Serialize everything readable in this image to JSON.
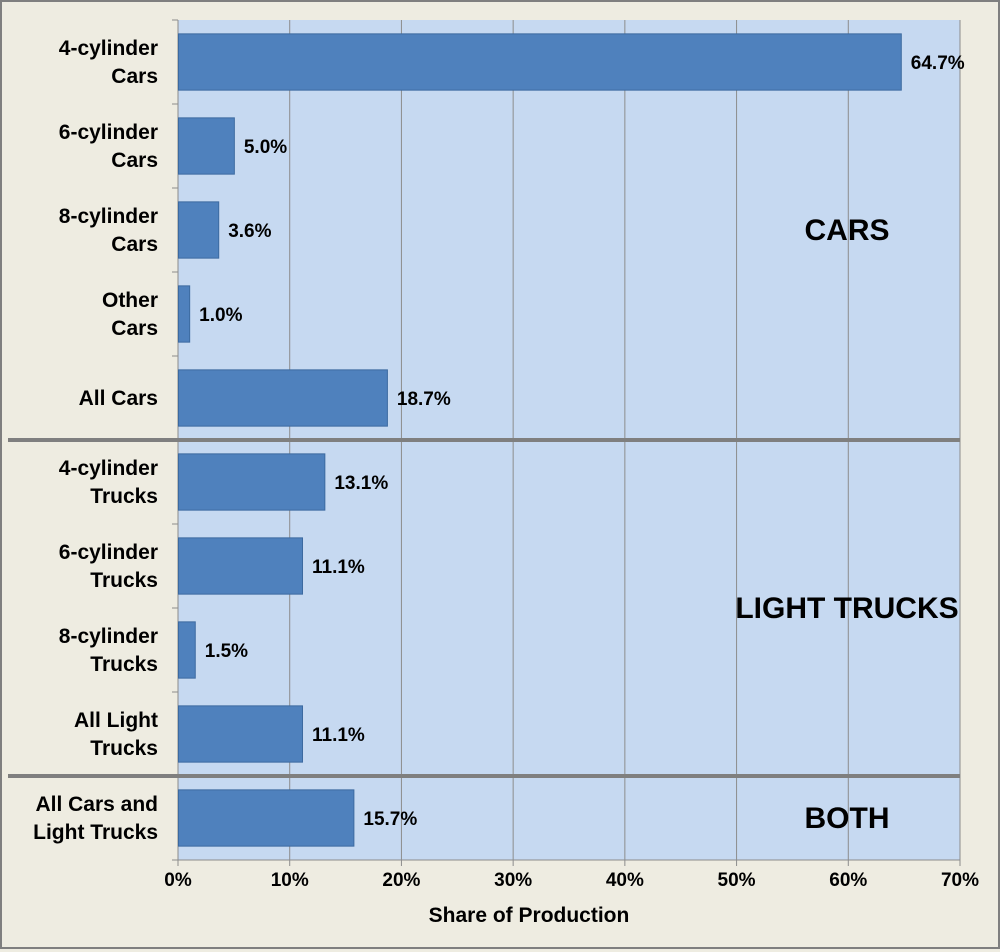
{
  "chart_data": {
    "type": "bar",
    "orientation": "horizontal",
    "title": "",
    "xlabel": "Share of Production",
    "ylabel": "",
    "xlim": [
      0,
      70
    ],
    "x_tick_labels": [
      "0%",
      "10%",
      "20%",
      "30%",
      "40%",
      "50%",
      "60%",
      "70%"
    ],
    "grid": true,
    "legend": "none",
    "categories": [
      [
        "4-cylinder",
        "Cars"
      ],
      [
        "6-cylinder",
        "Cars"
      ],
      [
        "8-cylinder",
        "Cars"
      ],
      [
        "Other",
        "Cars"
      ],
      [
        "All Cars"
      ],
      [
        "4-cylinder",
        "Trucks"
      ],
      [
        "6-cylinder",
        "Trucks"
      ],
      [
        "8-cylinder",
        "Trucks"
      ],
      [
        "All Light",
        "Trucks"
      ],
      [
        "All Cars and",
        "Light Trucks"
      ]
    ],
    "values": [
      64.7,
      5.0,
      3.6,
      1.0,
      18.7,
      13.1,
      11.1,
      1.5,
      11.1,
      15.7
    ],
    "data_labels": [
      "64.7%",
      "5.0%",
      "3.6%",
      "1.0%",
      "18.7%",
      "13.1%",
      "11.1%",
      "1.5%",
      "11.1%",
      "15.7%"
    ],
    "groups": [
      {
        "label": "CARS",
        "start": 0,
        "end": 4
      },
      {
        "label": "LIGHT TRUCKS",
        "start": 5,
        "end": 8
      },
      {
        "label": "BOTH",
        "start": 9,
        "end": 9
      }
    ],
    "colors": {
      "plot_background": "#c6d9f1",
      "bar": "#4f81bd",
      "bar_border": "#3c6aa0",
      "gridline": "#8c8c8c",
      "separator": "#7f7f7f",
      "page_background": "#eeece1"
    }
  }
}
